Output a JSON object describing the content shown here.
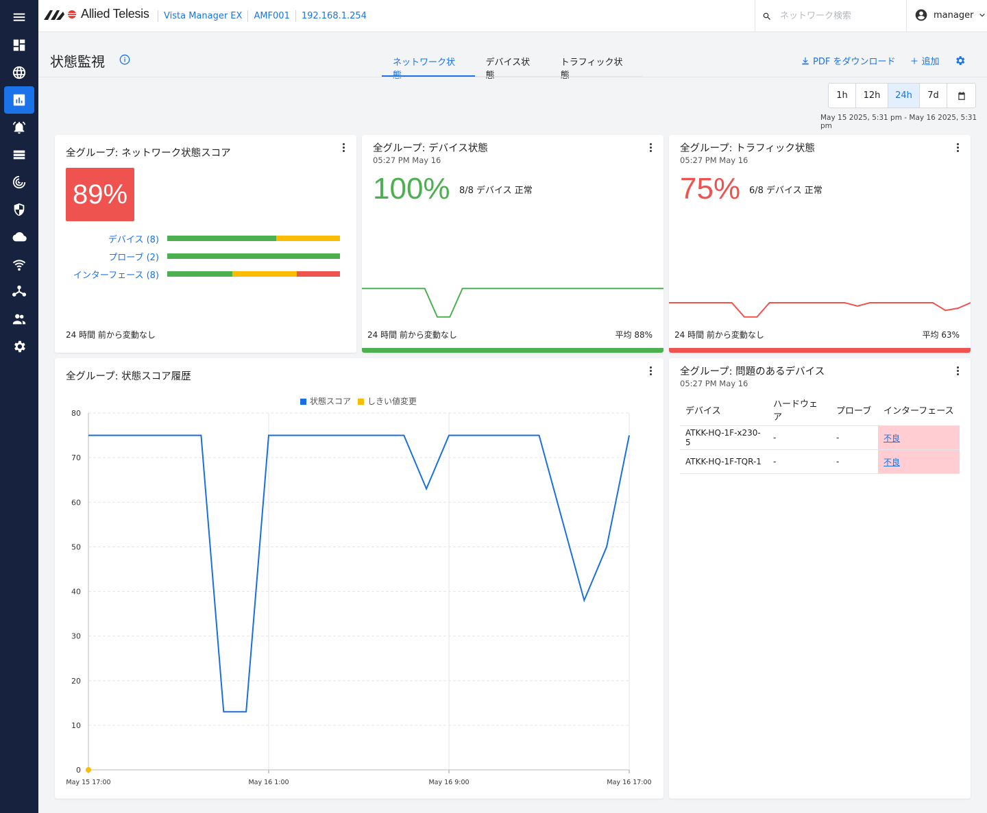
{
  "app": {
    "brand": "Allied Telesis",
    "product": "Vista Manager EX",
    "device": "AMF001",
    "ip": "192.168.1.254"
  },
  "topbar": {
    "search_placeholder": "ネットワーク検索",
    "user": "manager"
  },
  "page": {
    "title": "状態監視",
    "tabs": [
      {
        "label": "ネットワーク状態",
        "active": true
      },
      {
        "label": "デバイス状態",
        "active": false
      },
      {
        "label": "トラフィック状態",
        "active": false
      }
    ],
    "pdf_label": "PDF をダウンロード",
    "add_label": "追加"
  },
  "range": {
    "options": [
      "1h",
      "12h",
      "24h",
      "7d"
    ],
    "selected": "24h",
    "label": "May 15 2025, 5:31 pm - May 16 2025, 5:31 pm"
  },
  "network_score": {
    "title": "全グループ: ネットワーク状態スコア",
    "score": "89%",
    "score_color": "#ef5350",
    "rows": [
      {
        "label": "デバイス (8)",
        "segments": [
          {
            "color": "#4caf50",
            "fraction": 0.63
          },
          {
            "color": "#fbbc05",
            "fraction": 0.37
          }
        ]
      },
      {
        "label": "プローブ (2)",
        "segments": [
          {
            "color": "#4caf50",
            "fraction": 1.0
          }
        ]
      },
      {
        "label": "インターフェース (8)",
        "segments": [
          {
            "color": "#4caf50",
            "fraction": 0.375
          },
          {
            "color": "#fbbc05",
            "fraction": 0.375
          },
          {
            "color": "#ef5350",
            "fraction": 0.25
          }
        ]
      }
    ],
    "footer": "24 時間 前から変動なし"
  },
  "device_status": {
    "title": "全グループ: デバイス状態",
    "time": "05:27 PM May 16",
    "percent": "100%",
    "note": "8/8 デバイス 正常",
    "footer": "24 時間 前から変動なし",
    "average": "平均 88%",
    "color": "#4caf50"
  },
  "traffic_status": {
    "title": "全グループ: トラフィック状態",
    "time": "05:27 PM May 16",
    "percent": "75%",
    "note": "6/8 デバイス 正常",
    "footer": "24 時間 前から変動なし",
    "average": "平均 63%",
    "color": "#ef5350"
  },
  "history": {
    "title": "全グループ: 状態スコア履歴",
    "legend": [
      "状態スコア",
      "しきい値変更"
    ],
    "colors": {
      "score": "#1a6fe0",
      "threshold": "#fbbc05"
    }
  },
  "chart_data": {
    "type": "line",
    "title": "全グループ: 状態スコア履歴",
    "xlabel": "",
    "ylabel": "",
    "x_ticks": [
      "May 15 17:00",
      "May 16 1:00",
      "May 16 9:00",
      "May 16 17:00"
    ],
    "y_ticks": [
      0,
      10,
      20,
      30,
      40,
      50,
      60,
      70,
      80
    ],
    "xlim_hours": [
      0,
      24
    ],
    "ylim": [
      0,
      80
    ],
    "series": [
      {
        "name": "状態スコア",
        "x": [
          0,
          5,
          6,
          7,
          8,
          14,
          15,
          16,
          20,
          22,
          23,
          24
        ],
        "values": [
          75,
          75,
          13,
          13,
          75,
          75,
          63,
          75,
          75,
          38,
          50,
          75
        ]
      },
      {
        "name": "しきい値変更",
        "x": [
          0
        ],
        "values": [
          0
        ]
      }
    ]
  },
  "problems": {
    "title": "全グループ: 問題のあるデバイス",
    "time": "05:27 PM May 16",
    "columns": [
      "デバイス",
      "ハードウェア",
      "プローブ",
      "インターフェース"
    ],
    "rows": [
      {
        "device": "ATKK-HQ-1F-x230-5",
        "hardware": "-",
        "probe": "-",
        "interface": "不良"
      },
      {
        "device": "ATKK-HQ-1F-TQR-1",
        "hardware": "-",
        "probe": "-",
        "interface": "不良"
      }
    ]
  },
  "mini_charts": {
    "device_values": [
      88,
      88,
      88,
      88,
      88,
      88,
      62,
      62,
      88,
      88,
      88,
      88,
      88,
      88,
      88,
      88,
      88,
      88,
      88,
      88,
      88,
      88,
      88,
      88,
      88
    ],
    "traffic_values": [
      75,
      75,
      75,
      75,
      75,
      75,
      62,
      62,
      75,
      75,
      75,
      75,
      75,
      75,
      75,
      72,
      75,
      75,
      75,
      75,
      75,
      75,
      68,
      70,
      75
    ]
  }
}
